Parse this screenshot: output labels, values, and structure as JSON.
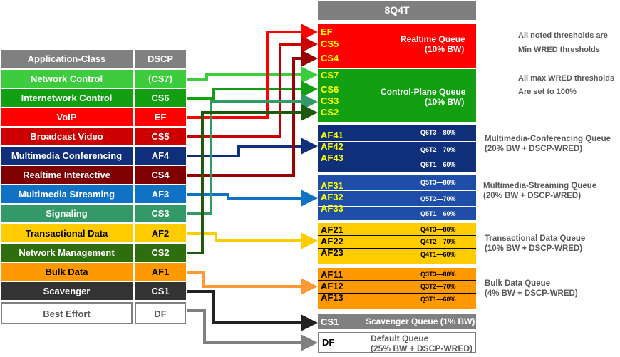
{
  "header": {
    "title": "8Q4T"
  },
  "table": {
    "col_app": "Application-Class",
    "col_dscp": "DSCP",
    "rows": [
      {
        "app": "Network Control",
        "dscp": "(CS7)",
        "color": "#3dcc3d"
      },
      {
        "app": "Internetwork Control",
        "dscp": "CS6",
        "color": "#12a012"
      },
      {
        "app": "VoIP",
        "dscp": "EF",
        "color": "#ff0000"
      },
      {
        "app": "Broadcast Video",
        "dscp": "CS5",
        "color": "#cc0000"
      },
      {
        "app": "Multimedia Conferencing",
        "dscp": "AF4",
        "color": "#0f2f7a"
      },
      {
        "app": "Realtime Interactive",
        "dscp": "CS4",
        "color": "#7f0000"
      },
      {
        "app": "Multimedia Streaming",
        "dscp": "AF3",
        "color": "#0f72c4"
      },
      {
        "app": "Signaling",
        "dscp": "CS3",
        "color": "#339966"
      },
      {
        "app": "Transactional Data",
        "dscp": "AF2",
        "color": "#ffcc00"
      },
      {
        "app": "Network Management",
        "dscp": "CS2",
        "color": "#2e6e0e"
      },
      {
        "app": "Bulk Data",
        "dscp": "AF1",
        "color": "#ff9900"
      },
      {
        "app": "Scavenger",
        "dscp": "CS1",
        "color": "#333333"
      },
      {
        "app": "Best Effort",
        "dscp": "DF",
        "color": "#ffffff"
      }
    ]
  },
  "queues": {
    "realtime": {
      "dscps": [
        "EF",
        "CS5",
        "CS4"
      ],
      "name": "Realtime Queue",
      "bw": "(10% BW)",
      "color": "#ff0000"
    },
    "control": {
      "dscps": [
        "CS7",
        "CS6",
        "CS3",
        "CS2"
      ],
      "name": "Control-Plane Queue",
      "bw": "(10% BW)",
      "color": "#12a012"
    },
    "conferencing": {
      "dscps": [
        "AF41",
        "AF42",
        "AF43"
      ],
      "thresholds": [
        "Q6T3—80%",
        "Q6T2—70%",
        "Q6T1—60%"
      ],
      "label_1": "Multimedia-Conferencing Queue",
      "label_2": "(20% BW + DSCP-WRED)",
      "color": "#0f2f7a"
    },
    "streaming": {
      "dscps": [
        "AF31",
        "AF32",
        "AF33"
      ],
      "thresholds": [
        "Q5T3—80%",
        "Q5T2—70%",
        "Q5T1—60%"
      ],
      "label_1": "Multimedia-Streaming Queue",
      "label_2": "(20% BW + DSCP-WRED)",
      "color": "#1f4ea8"
    },
    "transactional": {
      "dscps": [
        "AF21",
        "AF22",
        "AF23"
      ],
      "thresholds": [
        "Q4T3—80%",
        "Q4T2—70%",
        "Q4T1—60%"
      ],
      "label_1": "Transactional Data Queue",
      "label_2": "(10% BW + DSCP-WRED)",
      "color": "#ffcc00"
    },
    "bulk": {
      "dscps": [
        "AF11",
        "AF12",
        "AF13"
      ],
      "thresholds": [
        "Q3T3—80%",
        "Q3T2—70%",
        "Q3T1—60%"
      ],
      "label_1": "Bulk Data Queue",
      "label_2": "(4% BW + DSCP-WRED)",
      "color": "#ff9900"
    },
    "scavenger": {
      "dscp": "CS1",
      "label": "Scavenger Queue (1% BW)",
      "color": "#808080"
    },
    "default": {
      "dscp": "DF",
      "label_1": "Default Queue",
      "label_2": "(25% BW + DSCP-WRED)",
      "color": "#ffffff"
    }
  },
  "notes": {
    "line_1": "All noted thresholds are",
    "line_2": "Min WRED  thresholds",
    "line_3": "All max WRED  thresholds",
    "line_4": "Are set to 100%"
  }
}
